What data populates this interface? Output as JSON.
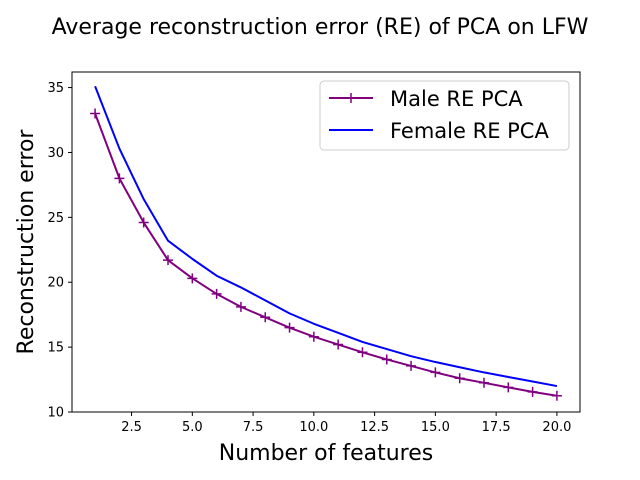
{
  "chart_data": {
    "type": "line",
    "title": "Average reconstruction error (RE) of PCA on LFW",
    "xlabel": "Number of features",
    "ylabel": "Reconstruction error",
    "xlim": [
      0.05,
      20.95
    ],
    "ylim": [
      10,
      36.2
    ],
    "xticks": [
      2.5,
      5.0,
      7.5,
      10.0,
      12.5,
      15.0,
      17.5,
      20.0
    ],
    "xtick_labels": [
      "2.5",
      "5.0",
      "7.5",
      "10.0",
      "12.5",
      "15.0",
      "17.5",
      "20.0"
    ],
    "yticks": [
      10,
      15,
      20,
      25,
      30,
      35
    ],
    "ytick_labels": [
      "10",
      "15",
      "20",
      "25",
      "30",
      "35"
    ],
    "grid": false,
    "legend_position": "top-right",
    "x": [
      1,
      2,
      3,
      4,
      5,
      6,
      7,
      8,
      9,
      10,
      11,
      12,
      13,
      14,
      15,
      16,
      17,
      18,
      19,
      20
    ],
    "series": [
      {
        "name": "Male RE PCA",
        "color": "#800080",
        "marker": "+",
        "values": [
          33.0,
          28.0,
          24.6,
          21.7,
          20.3,
          19.1,
          18.1,
          17.3,
          16.5,
          15.8,
          15.2,
          14.6,
          14.05,
          13.55,
          13.05,
          12.6,
          12.25,
          11.9,
          11.55,
          11.25
        ]
      },
      {
        "name": "Female RE PCA",
        "color": "#0000ff",
        "marker": "",
        "values": [
          35.1,
          30.3,
          26.4,
          23.2,
          21.8,
          20.5,
          19.6,
          18.6,
          17.6,
          16.8,
          16.1,
          15.4,
          14.85,
          14.3,
          13.85,
          13.45,
          13.05,
          12.7,
          12.35,
          12.0
        ]
      }
    ]
  }
}
